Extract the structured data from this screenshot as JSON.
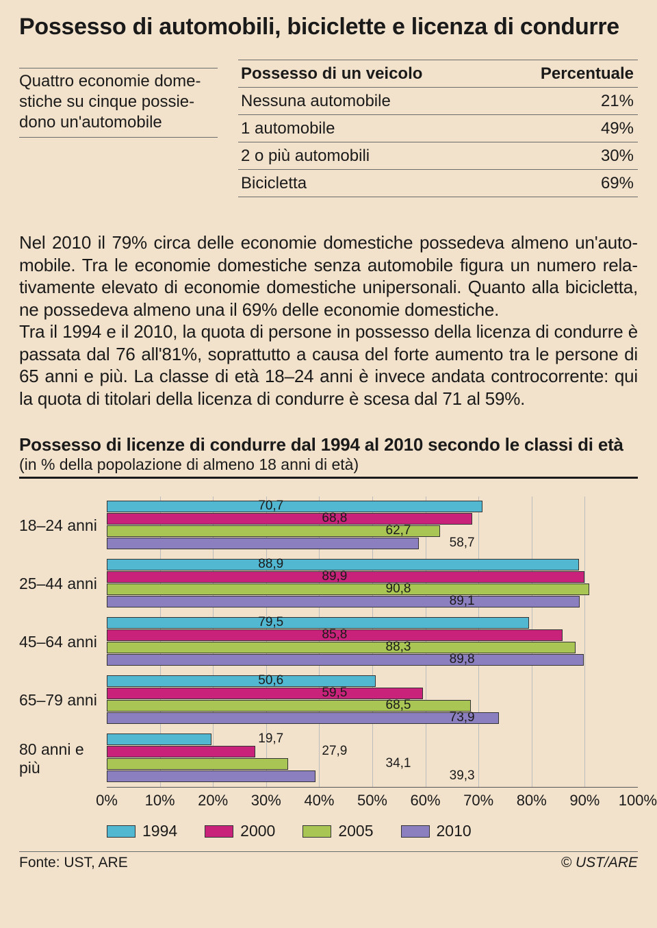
{
  "title": "Possesso di automobili, biciclette e licenza di condurre",
  "caption": "Quattro economie dome­stiche su cinque possie­dono un'automobile",
  "table": {
    "col1": "Possesso di un veicolo",
    "col2": "Percentuale",
    "rows": [
      {
        "label": "Nessuna automobile",
        "pct": "21%"
      },
      {
        "label": "1 automobile",
        "pct": "49%"
      },
      {
        "label": "2 o più automobili",
        "pct": "30%"
      },
      {
        "label": "Bicicletta",
        "pct": "69%"
      }
    ]
  },
  "paragraph": "Nel 2010 il 79% circa delle economie domestiche possedeva almeno un'auto­mobile. Tra le economie domestiche senza automobile figura un numero rela­tivamente elevato di economie domestiche unipersonali. Quanto alla bicicletta, ne possedeva almeno una il 69% delle economie domestiche.\nTra il 1994 e il 2010, la quota di persone in possesso della licenza di condurre è passata dal 76 all'81%, soprattutto a causa del forte aumento tra le persone di 65 anni e più. La classe di età 18–24 anni è invece andata controcorrente: qui la quota di titolari della licenza di condurre è scesa dal 71 al 59%.",
  "chart": {
    "title": "Possesso di licenze di condurre dal 1994 al 2010 secondo le classi di età",
    "subtitle": "(in % della popolazione di almeno 18 anni di età)",
    "xmin": 0,
    "xmax": 100,
    "xtick_step": 10,
    "groups": [
      "18–24 anni",
      "25–44 anni",
      "45–64 anni",
      "65–79 anni",
      "80 anni e più"
    ],
    "series": [
      {
        "name": "1994",
        "color": "#52b7d0",
        "values": [
          70.7,
          88.9,
          79.5,
          50.6,
          19.7
        ]
      },
      {
        "name": "2000",
        "color": "#c9227a",
        "values": [
          68.8,
          89.9,
          85.8,
          59.5,
          27.9
        ]
      },
      {
        "name": "2005",
        "color": "#a9c553",
        "values": [
          62.7,
          90.8,
          88.3,
          68.5,
          34.1
        ]
      },
      {
        "name": "2010",
        "color": "#8b7fbf",
        "values": [
          58.7,
          89.1,
          89.8,
          73.9,
          39.3
        ]
      }
    ],
    "label_fmt_decimal": ","
  },
  "footer": {
    "left": "Fonte: UST, ARE",
    "right": "© UST/ARE"
  }
}
